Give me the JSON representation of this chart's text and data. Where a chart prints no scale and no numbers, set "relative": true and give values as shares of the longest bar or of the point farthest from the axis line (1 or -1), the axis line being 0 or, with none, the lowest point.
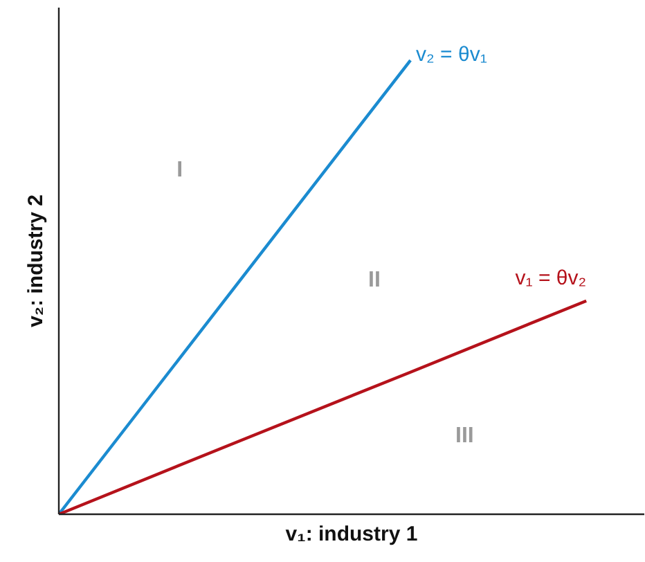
{
  "chart_data": {
    "type": "line",
    "relative": true,
    "xlabel": "v₁: industry 1",
    "ylabel": "v₂: industry 2",
    "categories": [
      null,
      null,
      null,
      null
    ],
    "series": [
      {
        "name": "v₂ = θv₁",
        "color": "#1b8bd0",
        "values": [
          0,
          0.5,
          1,
          null
        ]
      },
      {
        "name": "v₁ = θv₂",
        "color": "#b5121b",
        "values": [
          0,
          0.157,
          0.313,
          0.47
        ]
      }
    ],
    "annotations": [
      "I",
      "II",
      "III"
    ]
  }
}
